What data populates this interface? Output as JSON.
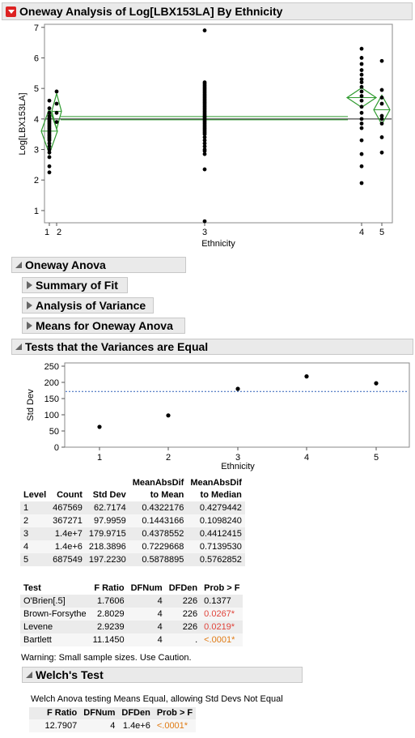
{
  "title": "Oneway Analysis of Log[LBX153LA] By Ethnicity",
  "plot1": {
    "ylabel": "Log[LBX153LA]",
    "xlabel": "Ethnicity",
    "yticks": [
      "1",
      "2",
      "3",
      "4",
      "5",
      "6",
      "7"
    ],
    "xticks": [
      "1",
      "2",
      "3",
      "4",
      "5"
    ],
    "ylim": [
      0.6,
      7.1
    ],
    "grand_mean": 4.0,
    "means": [
      3.6,
      4.25,
      3.95,
      4.7,
      4.3
    ],
    "points": {
      "g1": [
        2.25,
        2.45,
        2.75,
        2.9,
        3.0,
        3.1,
        3.2,
        3.3,
        3.35,
        3.4,
        3.45,
        3.5,
        3.55,
        3.6,
        3.65,
        3.7,
        3.75,
        3.8,
        3.85,
        3.9,
        3.95,
        4.0,
        4.05,
        4.1,
        4.2,
        4.35,
        4.6
      ],
      "g2": [
        3.9,
        4.2,
        4.5,
        4.9
      ],
      "g3": [
        0.65,
        2.35,
        2.85,
        2.95,
        3.0,
        3.1,
        3.2,
        3.3,
        3.4,
        3.5,
        3.55,
        3.6,
        3.65,
        3.7,
        3.75,
        3.8,
        3.85,
        3.9,
        3.95,
        4.0,
        4.05,
        4.1,
        4.15,
        4.2,
        4.25,
        4.3,
        4.35,
        4.4,
        4.45,
        4.5,
        4.55,
        4.6,
        4.65,
        4.7,
        4.75,
        4.8,
        4.85,
        4.9,
        4.95,
        5.0,
        5.05,
        5.1,
        5.15,
        5.2,
        6.9
      ],
      "g4": [
        1.9,
        2.45,
        2.85,
        3.3,
        3.7,
        3.85,
        4.0,
        4.2,
        4.4,
        4.6,
        4.75,
        4.9,
        5.05,
        5.2,
        5.3,
        5.45,
        5.6,
        5.8,
        6.0,
        6.3
      ],
      "g5": [
        2.9,
        3.4,
        3.85,
        4.0,
        4.1,
        4.5,
        4.7,
        4.95,
        5.9
      ]
    }
  },
  "sections": {
    "oneway_anova": "Oneway Anova",
    "summary_of_fit": "Summary of Fit",
    "analysis_of_variance": "Analysis of Variance",
    "means_for_oneway": "Means for Oneway Anova",
    "tests_variances": "Tests that the Variances are Equal",
    "welch": "Welch's Test"
  },
  "chart_data": {
    "type": "scatter",
    "xlabel": "Ethnicity",
    "ylabel": "Std Dev",
    "x": [
      "1",
      "2",
      "3",
      "4",
      "5"
    ],
    "values": [
      62.7174,
      97.9959,
      179.9715,
      218.3896,
      197.223
    ],
    "yticks": [
      "0",
      "50",
      "100",
      "150",
      "200",
      "250"
    ],
    "ylim": [
      0,
      250
    ],
    "reference_line": 172
  },
  "level_table": {
    "headers": [
      "Level",
      "Count",
      "Std Dev",
      "MeanAbsDif to Mean",
      "MeanAbsDif to Median"
    ],
    "header_line1": [
      "",
      "",
      "",
      "MeanAbsDif",
      "MeanAbsDif"
    ],
    "header_line2": [
      "Level",
      "Count",
      "Std Dev",
      "to Mean",
      "to Median"
    ],
    "rows": [
      [
        "1",
        "467569",
        "62.7174",
        "0.4322176",
        "0.4279442"
      ],
      [
        "2",
        "367271",
        "97.9959",
        "0.1443166",
        "0.1098240"
      ],
      [
        "3",
        "1.4e+7",
        "179.9715",
        "0.4378552",
        "0.4412415"
      ],
      [
        "4",
        "1.4e+6",
        "218.3896",
        "0.7229668",
        "0.7139530"
      ],
      [
        "5",
        "687549",
        "197.2230",
        "0.5878895",
        "0.5762852"
      ]
    ]
  },
  "test_table": {
    "headers": [
      "Test",
      "F Ratio",
      "DFNum",
      "DFDen",
      "Prob > F"
    ],
    "rows": [
      [
        "O'Brien[.5]",
        "1.7606",
        "4",
        "226",
        "0.1377"
      ],
      [
        "Brown-Forsythe",
        "2.8029",
        "4",
        "226",
        "0.0267*"
      ],
      [
        "Levene",
        "2.9239",
        "4",
        "226",
        "0.0219*"
      ],
      [
        "Bartlett",
        "11.1450",
        "4",
        ".",
        "<.0001*"
      ]
    ],
    "prob_colors": [
      "#000000",
      "#e0433a",
      "#e0433a",
      "#e07b14"
    ]
  },
  "warning": "Warning: Small sample sizes. Use Caution.",
  "welch": {
    "description": "Welch Anova testing Means Equal, allowing Std Devs Not Equal",
    "headers": [
      "F Ratio",
      "DFNum",
      "DFDen",
      "Prob > F"
    ],
    "row": [
      "12.7907",
      "4",
      "1.4e+6",
      "<.0001*"
    ]
  }
}
